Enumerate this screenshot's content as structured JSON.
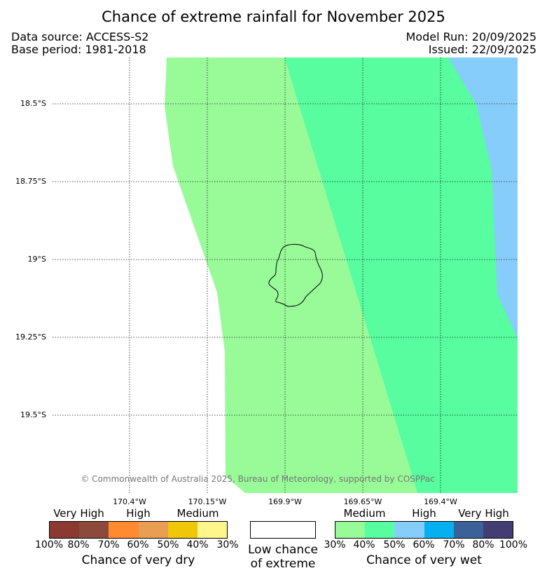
{
  "title": "Chance of extreme rainfall for November 2025",
  "meta": {
    "data_source": "Data source: ACCESS-S2",
    "base_period": "Base period: 1981-2018",
    "model_run": "Model Run: 20/09/2025",
    "issued": "Issued: 22/09/2025"
  },
  "map": {
    "lat_labels": [
      "18.5°S",
      "18.75°S",
      "19°S",
      "19.25°S",
      "19.5°S"
    ],
    "lon_labels": [
      "170.4°W",
      "170.15°W",
      "169.9°W",
      "169.65°W",
      "169.4°W"
    ],
    "copyright": "© Commonwealth of Australia 2025, Bureau of Meteorology, supported by COSPPac",
    "regions": [
      {
        "category": "low-chance",
        "color": "#ffffff"
      },
      {
        "category": "wet-medium-30-40",
        "color": "#98fb98"
      },
      {
        "category": "wet-medium-40-50",
        "color": "#57fd9f"
      },
      {
        "category": "wet-high-50-60",
        "color": "#87cdfb"
      }
    ]
  },
  "legend": {
    "dry": {
      "group_labels": [
        "Very High",
        "High",
        "Medium"
      ],
      "colors": [
        "#8b3a32",
        "#8b4a3b",
        "#ff8a2f",
        "#eb9d53",
        "#efc608",
        "#fef58c"
      ],
      "ticks": [
        "100%",
        "80%",
        "70%",
        "60%",
        "50%",
        "40%",
        "30%"
      ],
      "title": "Chance of very dry"
    },
    "low": {
      "color": "#ffffff",
      "line1": "Low chance",
      "line2": "of extreme"
    },
    "wet": {
      "group_labels": [
        "Medium",
        "High",
        "Very High"
      ],
      "colors": [
        "#98fb98",
        "#57fd9f",
        "#87cdfb",
        "#04b0ef",
        "#3b6199",
        "#433d73"
      ],
      "ticks": [
        "30%",
        "40%",
        "50%",
        "60%",
        "70%",
        "80%",
        "100%"
      ],
      "title": "Chance of very wet"
    }
  }
}
